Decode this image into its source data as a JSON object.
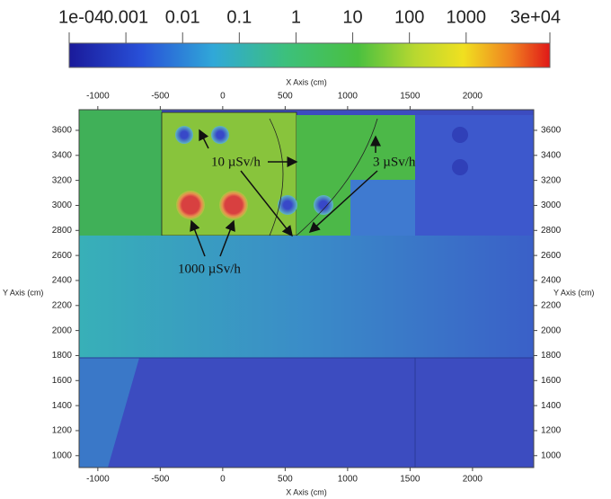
{
  "chart_data": {
    "type": "map",
    "colorbar": {
      "scale": "log",
      "lim": [
        0.0001,
        30000
      ],
      "ticks": [
        {
          "value": 0.0001,
          "label": "1e-04"
        },
        0.001,
        0.01,
        0.1,
        1,
        10,
        100,
        1000,
        {
          "value": 30000,
          "label": "3e+04"
        }
      ]
    },
    "xlabel": "X Axis (cm)",
    "ylabel": "Y Axis (cm)",
    "xlim": [
      -1150,
      2490
    ],
    "ylim": [
      905,
      3765
    ],
    "xticks": [
      -1000,
      -500,
      0,
      500,
      1000,
      1500,
      2000
    ],
    "yticks": [
      1000,
      1200,
      1400,
      1600,
      1800,
      2000,
      2200,
      2400,
      2600,
      2800,
      3000,
      3200,
      3400,
      3600
    ],
    "annotations": [
      "10 µSv/h",
      "3 µSv/h",
      "1000 µSv/h"
    ]
  }
}
